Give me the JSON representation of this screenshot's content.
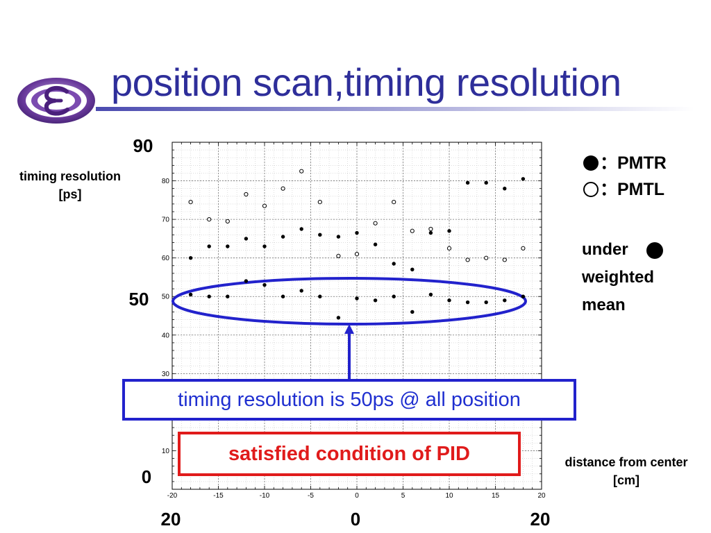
{
  "slide": {
    "title": "position scan,timing resolution",
    "ylabel_line1": "timing resolution",
    "ylabel_line2": "[ps]",
    "xlabel_line1": "distance from center",
    "xlabel_line2": "[cm]",
    "y_top_label": "90",
    "y_mid_label": "50",
    "y_bottom_label": "0",
    "x_left_label": "20",
    "x_center_label": "0",
    "x_right_label": "20",
    "legend_pmtr": "：PMTR",
    "legend_pmtl": "：PMTL",
    "note_line1": "under",
    "note_line2": "weighted",
    "note_line3": "mean",
    "callout_blue": "timing resolution is 50ps @ all position",
    "callout_red": "satisfied condition of PID",
    "colors": {
      "title": "#2e2e9a",
      "highlight_ellipse": "#2222cc",
      "blue_callout": "#1f2fd0",
      "red_callout": "#e01b1b",
      "logo": "#5b2a8c"
    }
  },
  "chart_data": {
    "type": "scatter",
    "x_ticks": [
      -20,
      -15,
      -10,
      -5,
      0,
      5,
      10,
      15,
      20
    ],
    "y_ticks": [
      10,
      20,
      30,
      40,
      50,
      60,
      70,
      80
    ],
    "xlim": [
      -20,
      20
    ],
    "ylim": [
      0,
      90
    ],
    "grid": true,
    "series": [
      {
        "name": "PMTR",
        "marker": "filled",
        "x": [
          -18,
          -16,
          -14,
          -12,
          -10,
          -8,
          -6,
          -4,
          -2,
          0,
          2,
          4,
          6,
          8,
          10,
          12,
          14,
          16,
          18
        ],
        "y": [
          60.0,
          63.0,
          63.0,
          65.0,
          63.0,
          65.5,
          67.5,
          66.0,
          65.5,
          66.5,
          63.5,
          58.5,
          57.0,
          66.5,
          67.0,
          79.5,
          79.5,
          78.0,
          80.5
        ]
      },
      {
        "name": "PMTL",
        "marker": "open",
        "x": [
          -18,
          -16,
          -14,
          -12,
          -10,
          -8,
          -6,
          -4,
          -2,
          0,
          2,
          4,
          6,
          8,
          10,
          12,
          14,
          16,
          18
        ],
        "y": [
          74.5,
          70.0,
          69.5,
          76.5,
          73.5,
          78.0,
          82.5,
          74.5,
          60.5,
          61.0,
          69.0,
          74.5,
          67.0,
          67.5,
          62.5,
          59.5,
          60.0,
          59.5,
          62.5
        ]
      },
      {
        "name": "weighted mean",
        "marker": "filled-small",
        "x": [
          -18,
          -16,
          -14,
          -12,
          -10,
          -8,
          -6,
          -4,
          -2,
          0,
          2,
          4,
          6,
          8,
          10,
          12,
          14,
          16,
          18
        ],
        "y": [
          50.5,
          50.0,
          50.0,
          54.0,
          53.0,
          50.0,
          51.5,
          50.0,
          44.5,
          49.5,
          49.0,
          50.0,
          46.0,
          50.5,
          49.0,
          48.5,
          48.5,
          49.0,
          50.0
        ]
      }
    ]
  }
}
